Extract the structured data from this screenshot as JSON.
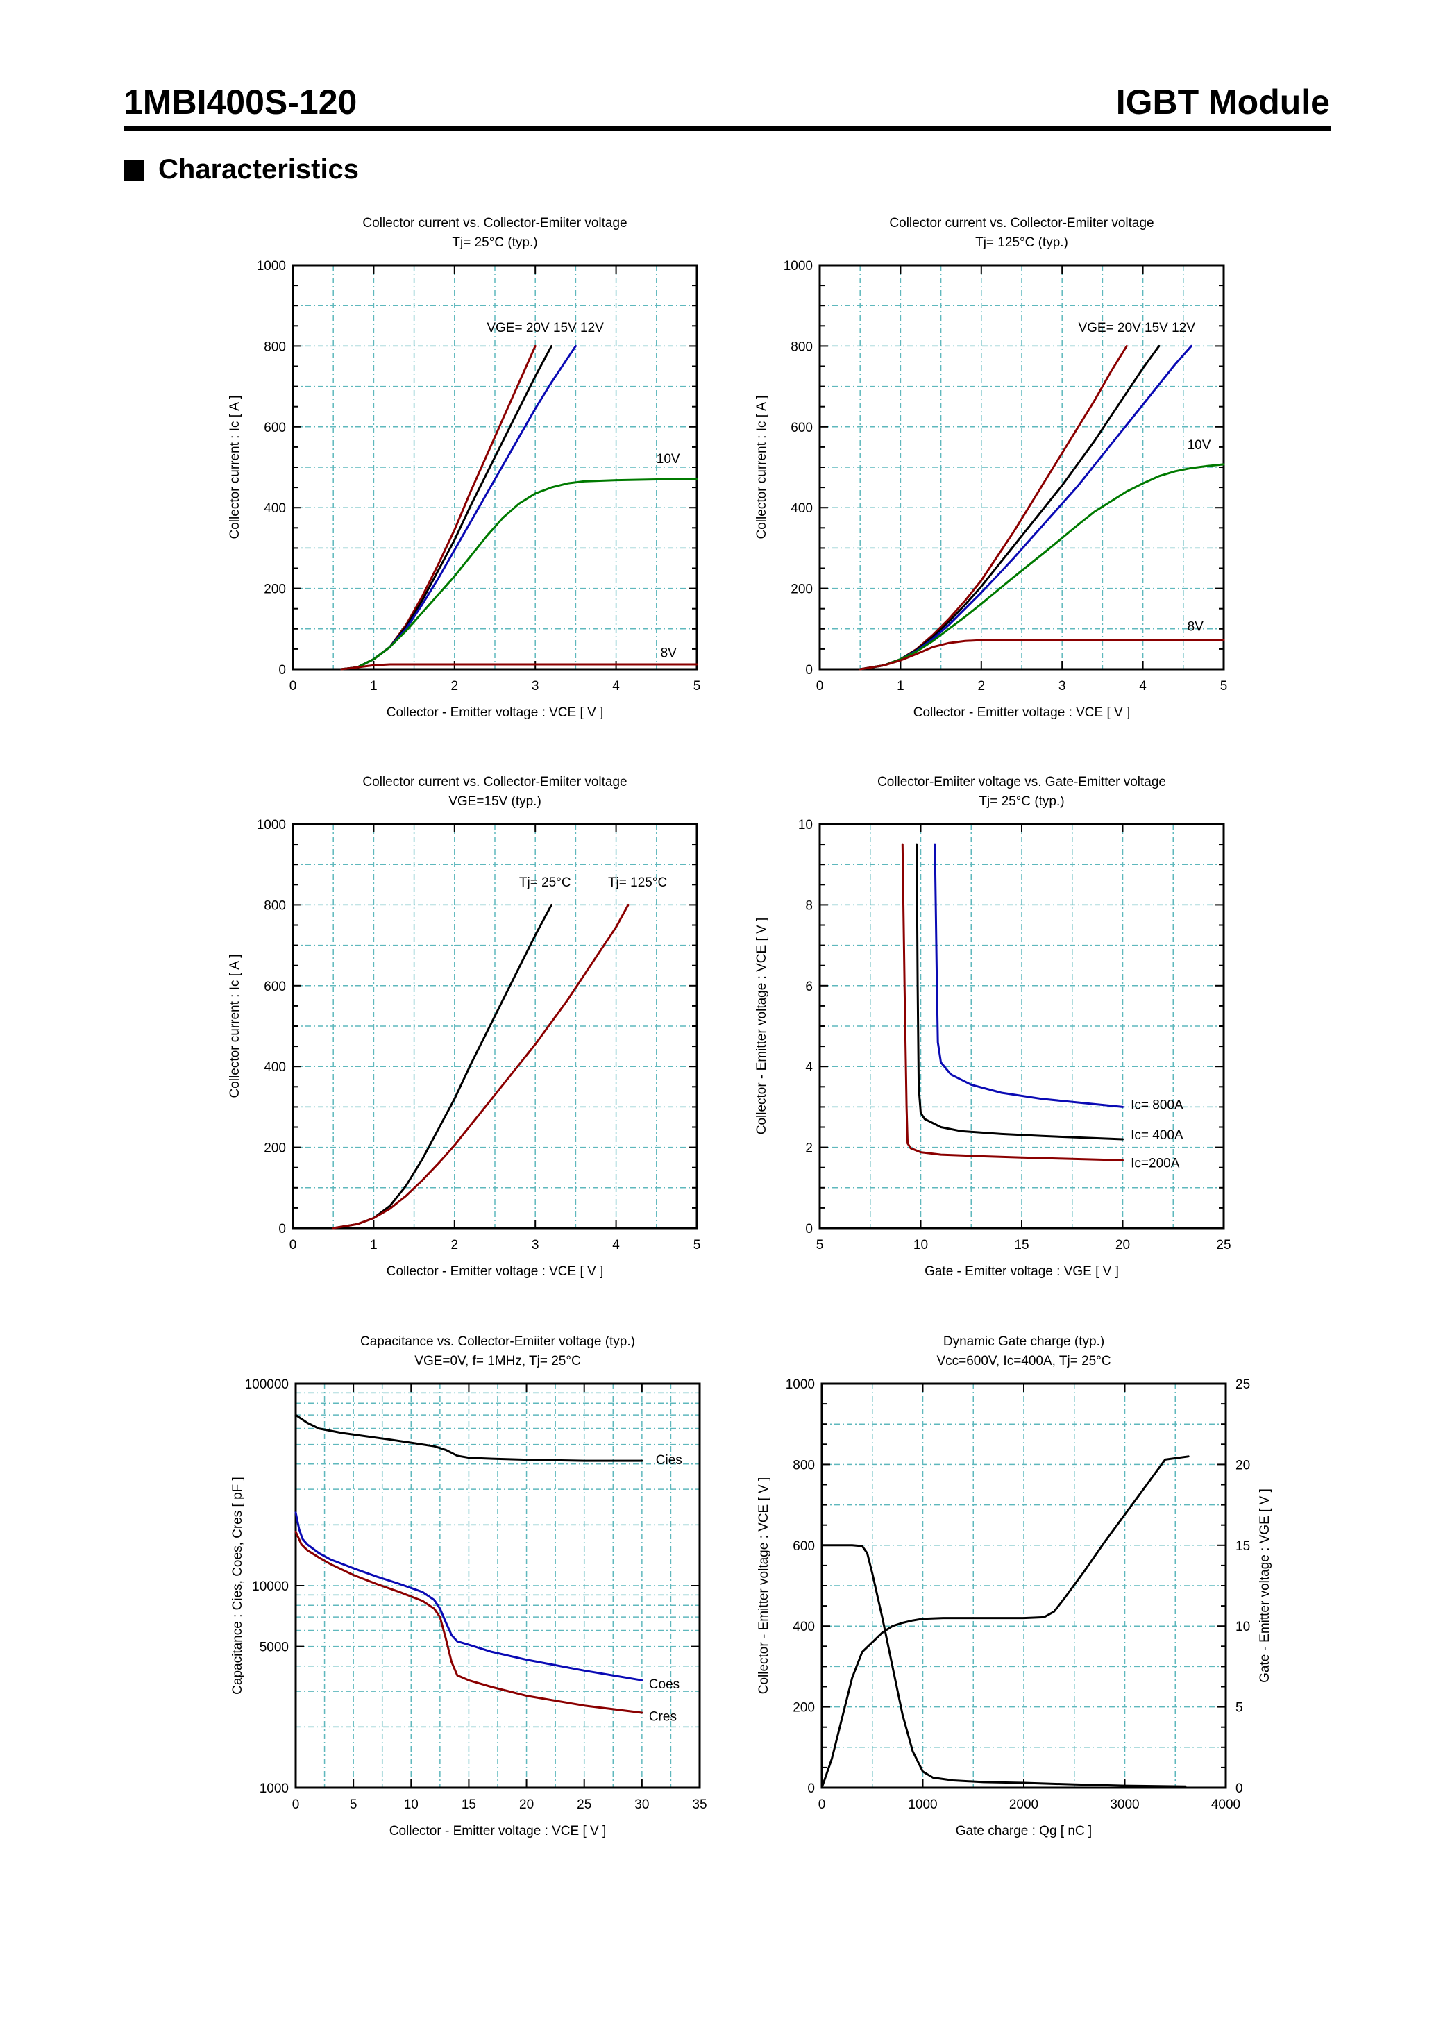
{
  "header": {
    "part_number": "1MBI400S-120",
    "product_type": "IGBT Module"
  },
  "section": {
    "title": "Characteristics"
  },
  "colors": {
    "grid": "#5fb8bd",
    "red": "#8b0000",
    "black": "#000000",
    "blue": "#0a0ab4",
    "green": "#007a00"
  },
  "chart_data": [
    {
      "id": "c1",
      "type": "line",
      "title": "Collector current  vs.  Collector-Emiiter voltage",
      "subtitle": "Tj= 25°C  (typ.)",
      "xlabel": "Collector - Emitter voltage  :  VCE  [ V ]",
      "ylabel": "Collector current  :  Ic  [ A ]",
      "xlim": [
        0,
        5
      ],
      "ylim": [
        0,
        1000
      ],
      "xticks": [
        0,
        1,
        2,
        3,
        4,
        5
      ],
      "yticks": [
        0,
        200,
        400,
        600,
        800,
        1000
      ],
      "grid": true,
      "annotations": [
        {
          "text": "VGE= 20V  15V 12V",
          "x": 2.4,
          "y": 835
        },
        {
          "text": "10V",
          "x": 4.5,
          "y": 510
        },
        {
          "text": "8V",
          "x": 4.55,
          "y": 30
        }
      ],
      "series": [
        {
          "color": "red",
          "x": [
            0.6,
            0.8,
            1.0,
            1.2,
            1.4,
            1.6,
            1.8,
            2.0,
            2.2,
            2.4,
            2.6,
            2.8,
            3.0
          ],
          "y": [
            0,
            5,
            25,
            55,
            110,
            180,
            260,
            345,
            440,
            530,
            620,
            710,
            800
          ]
        },
        {
          "color": "black",
          "x": [
            0.6,
            0.8,
            1.0,
            1.2,
            1.4,
            1.6,
            1.8,
            2.0,
            2.2,
            2.4,
            2.6,
            2.8,
            3.0,
            3.2
          ],
          "y": [
            0,
            5,
            25,
            55,
            105,
            170,
            245,
            320,
            405,
            485,
            565,
            645,
            725,
            800
          ]
        },
        {
          "color": "blue",
          "x": [
            0.6,
            0.8,
            1.0,
            1.2,
            1.4,
            1.6,
            1.8,
            2.0,
            2.2,
            2.4,
            2.6,
            2.8,
            3.0,
            3.2,
            3.5
          ],
          "y": [
            0,
            5,
            25,
            55,
            100,
            160,
            225,
            295,
            365,
            435,
            505,
            575,
            645,
            710,
            800
          ]
        },
        {
          "color": "green",
          "x": [
            0.6,
            0.8,
            1.0,
            1.2,
            1.4,
            1.6,
            1.8,
            2.0,
            2.2,
            2.4,
            2.6,
            2.8,
            3.0,
            3.2,
            3.4,
            3.6,
            4.0,
            4.5,
            5.0
          ],
          "y": [
            0,
            5,
            25,
            55,
            95,
            140,
            185,
            230,
            280,
            330,
            375,
            410,
            435,
            450,
            460,
            465,
            468,
            470,
            470
          ]
        },
        {
          "color": "red",
          "x": [
            0.6,
            0.8,
            1.0,
            1.2,
            1.5,
            2.0,
            3.0,
            4.0,
            5.0
          ],
          "y": [
            0,
            5,
            10,
            12,
            12,
            12,
            12,
            12,
            12
          ]
        }
      ]
    },
    {
      "id": "c2",
      "type": "line",
      "title": "Collector current  vs.  Collector-Emiiter voltage",
      "subtitle": "Tj= 125°C  (typ.)",
      "xlabel": "Collector - Emitter voltage  :  VCE  [ V ]",
      "ylabel": "Collector current  :  Ic  [ A ]",
      "xlim": [
        0,
        5
      ],
      "ylim": [
        0,
        1000
      ],
      "xticks": [
        0,
        1,
        2,
        3,
        4,
        5
      ],
      "yticks": [
        0,
        200,
        400,
        600,
        800,
        1000
      ],
      "grid": true,
      "annotations": [
        {
          "text": "VGE= 20V  15V  12V",
          "x": 3.2,
          "y": 835
        },
        {
          "text": "10V",
          "x": 4.55,
          "y": 545
        },
        {
          "text": "8V",
          "x": 4.55,
          "y": 95
        }
      ],
      "series": [
        {
          "color": "red",
          "x": [
            0.5,
            0.8,
            1.0,
            1.2,
            1.4,
            1.6,
            1.8,
            2.0,
            2.2,
            2.4,
            2.6,
            2.8,
            3.0,
            3.2,
            3.4,
            3.6,
            3.8,
            3.8
          ],
          "y": [
            0,
            10,
            25,
            50,
            85,
            125,
            170,
            220,
            280,
            340,
            405,
            470,
            535,
            600,
            665,
            735,
            800,
            800
          ]
        },
        {
          "color": "black",
          "x": [
            0.5,
            0.8,
            1.0,
            1.2,
            1.4,
            1.6,
            1.8,
            2.0,
            2.2,
            2.4,
            2.6,
            2.8,
            3.0,
            3.2,
            3.4,
            3.6,
            3.8,
            4.0,
            4.2
          ],
          "y": [
            0,
            10,
            25,
            48,
            80,
            118,
            160,
            205,
            255,
            305,
            355,
            405,
            455,
            510,
            565,
            625,
            685,
            745,
            800
          ]
        },
        {
          "color": "blue",
          "x": [
            0.5,
            0.8,
            1.0,
            1.2,
            1.4,
            1.6,
            1.8,
            2.0,
            2.2,
            2.4,
            2.6,
            2.8,
            3.0,
            3.2,
            3.4,
            3.6,
            3.8,
            4.0,
            4.2,
            4.4,
            4.6
          ],
          "y": [
            0,
            10,
            25,
            46,
            75,
            110,
            150,
            190,
            232,
            275,
            320,
            365,
            410,
            455,
            505,
            555,
            605,
            655,
            705,
            755,
            800
          ]
        },
        {
          "color": "green",
          "x": [
            0.5,
            0.8,
            1.0,
            1.2,
            1.4,
            1.6,
            1.8,
            2.0,
            2.2,
            2.4,
            2.6,
            2.8,
            3.0,
            3.2,
            3.4,
            3.6,
            3.8,
            4.0,
            4.2,
            4.4,
            4.6,
            4.8,
            5.0
          ],
          "y": [
            0,
            10,
            25,
            44,
            70,
            100,
            130,
            162,
            195,
            228,
            260,
            292,
            325,
            358,
            390,
            415,
            440,
            460,
            478,
            490,
            498,
            503,
            507
          ]
        },
        {
          "color": "red",
          "x": [
            0.5,
            0.8,
            1.0,
            1.2,
            1.4,
            1.6,
            1.8,
            2.0,
            2.5,
            3.0,
            4.0,
            5.0
          ],
          "y": [
            0,
            10,
            22,
            38,
            55,
            65,
            70,
            72,
            72,
            72,
            72,
            73
          ]
        }
      ]
    },
    {
      "id": "c3",
      "type": "line",
      "title": "Collector current  vs.  Collector-Emiiter voltage",
      "subtitle": "VGE=15V  (typ.)",
      "xlabel": "Collector - Emitter voltage  :  VCE  [ V ]",
      "ylabel": "Collector current  :  Ic  [ A ]",
      "xlim": [
        0,
        5
      ],
      "ylim": [
        0,
        1000
      ],
      "xticks": [
        0,
        1,
        2,
        3,
        4,
        5
      ],
      "yticks": [
        0,
        200,
        400,
        600,
        800,
        1000
      ],
      "grid": true,
      "annotations": [
        {
          "text": "Tj= 25°C",
          "x": 2.8,
          "y": 845
        },
        {
          "text": "Tj= 125°C",
          "x": 3.9,
          "y": 845
        }
      ],
      "series": [
        {
          "color": "black",
          "x": [
            0.5,
            0.8,
            1.0,
            1.2,
            1.4,
            1.6,
            1.8,
            2.0,
            2.2,
            2.4,
            2.6,
            2.8,
            3.0,
            3.2
          ],
          "y": [
            0,
            10,
            25,
            55,
            105,
            170,
            245,
            320,
            405,
            485,
            565,
            645,
            725,
            800
          ]
        },
        {
          "color": "red",
          "x": [
            0.5,
            0.8,
            1.0,
            1.2,
            1.4,
            1.6,
            1.8,
            2.0,
            2.2,
            2.4,
            2.6,
            2.8,
            3.0,
            3.2,
            3.4,
            3.6,
            3.8,
            4.0,
            4.15
          ],
          "y": [
            0,
            10,
            25,
            48,
            80,
            118,
            160,
            205,
            255,
            305,
            355,
            405,
            455,
            510,
            565,
            625,
            685,
            745,
            800
          ]
        }
      ]
    },
    {
      "id": "c4",
      "type": "line",
      "title": "Collector-Emiiter voltage  vs. Gate-Emitter voltage",
      "subtitle": "Tj= 25°C  (typ.)",
      "xlabel": "Gate - Emitter voltage  :  VGE  [ V ]",
      "ylabel": "Collector - Emitter voltage  :  VCE  [ V ]",
      "xlim": [
        5,
        25
      ],
      "ylim": [
        0,
        10
      ],
      "xticks": [
        5,
        10,
        15,
        20,
        25
      ],
      "yticks": [
        0,
        2,
        4,
        6,
        8,
        10
      ],
      "grid": true,
      "annotations": [
        {
          "text": "Ic= 800A",
          "x": 20.4,
          "y": 2.95
        },
        {
          "text": "Ic= 400A",
          "x": 20.4,
          "y": 2.2
        },
        {
          "text": "Ic=200A",
          "x": 20.4,
          "y": 1.5
        }
      ],
      "series": [
        {
          "color": "red",
          "x": [
            9.1,
            9.2,
            9.3,
            9.35,
            9.5,
            10.0,
            11.0,
            13.0,
            15.0,
            17.0,
            20.0
          ],
          "y": [
            9.5,
            6.0,
            3.0,
            2.1,
            1.98,
            1.88,
            1.82,
            1.78,
            1.75,
            1.72,
            1.68
          ]
        },
        {
          "color": "black",
          "x": [
            9.8,
            9.85,
            9.9,
            10.0,
            10.2,
            11.0,
            12.0,
            14.0,
            16.0,
            18.0,
            20.0
          ],
          "y": [
            9.5,
            6.0,
            3.5,
            2.85,
            2.7,
            2.5,
            2.4,
            2.33,
            2.28,
            2.24,
            2.2
          ]
        },
        {
          "color": "blue",
          "x": [
            10.7,
            10.8,
            10.85,
            11.0,
            11.5,
            12.5,
            14.0,
            16.0,
            18.0,
            20.0
          ],
          "y": [
            9.5,
            6.0,
            4.6,
            4.1,
            3.8,
            3.55,
            3.35,
            3.2,
            3.1,
            3.0
          ]
        }
      ]
    },
    {
      "id": "c5",
      "type": "line",
      "title": "Capacitance  vs.  Collector-Emiiter voltage  (typ.)",
      "subtitle": "VGE=0V,  f= 1MHz,  Tj= 25°C",
      "xlabel": "Collector - Emitter voltage  :  VCE  [ V ]",
      "ylabel": "Capacitance  :  Cies, Coes, Cres  [ pF ]",
      "xlim": [
        0,
        35
      ],
      "ylim": [
        1000,
        100000
      ],
      "yscale": "log",
      "xticks": [
        0,
        5,
        10,
        15,
        20,
        25,
        30,
        35
      ],
      "yticks": [
        1000,
        5000,
        10000,
        100000
      ],
      "grid": true,
      "annotations": [
        {
          "text": "Cies",
          "x": 31.2,
          "y": 40000
        },
        {
          "text": "Coes",
          "x": 30.6,
          "y": 3100
        },
        {
          "text": "Cres",
          "x": 30.6,
          "y": 2150
        }
      ],
      "series": [
        {
          "color": "black",
          "x": [
            0,
            1,
            2,
            4,
            6,
            8,
            10,
            12,
            13,
            14,
            15,
            17,
            20,
            25,
            30
          ],
          "y": [
            70000,
            64000,
            60000,
            57000,
            55000,
            53000,
            51000,
            49000,
            47000,
            44000,
            43000,
            42500,
            42000,
            41500,
            41500
          ]
        },
        {
          "color": "blue",
          "x": [
            0,
            0.3,
            0.6,
            1,
            2,
            3,
            5,
            7,
            9,
            11,
            12,
            12.5,
            13,
            13.5,
            14,
            15,
            17,
            20,
            25,
            30
          ],
          "y": [
            23000,
            19000,
            17000,
            16000,
            14500,
            13500,
            12200,
            11100,
            10200,
            9300,
            8500,
            7700,
            6600,
            5700,
            5300,
            5100,
            4700,
            4300,
            3800,
            3400
          ]
        },
        {
          "color": "red",
          "x": [
            0,
            0.5,
            1,
            2,
            3,
            5,
            7,
            9,
            11,
            12,
            12.5,
            13,
            13.5,
            14,
            15,
            17,
            20,
            25,
            30
          ],
          "y": [
            18500,
            16000,
            15000,
            13800,
            12800,
            11300,
            10200,
            9300,
            8400,
            7700,
            7000,
            5500,
            4200,
            3600,
            3400,
            3150,
            2850,
            2550,
            2350
          ]
        }
      ]
    },
    {
      "id": "c6",
      "type": "line",
      "title": "Dynamic Gate charge  (typ.)",
      "subtitle": "Vcc=600V, Ic=400A, Tj= 25°C",
      "xlabel": "Gate charge  :  Qg  [ nC ]",
      "ylabel": "Collector - Emitter voltage  :  VCE  [ V ]",
      "y2label": "Gate - Emitter voltage  :  VGE  [ V ]",
      "xlim": [
        0,
        4000
      ],
      "ylim": [
        0,
        1000
      ],
      "y2lim": [
        0,
        25
      ],
      "xticks": [
        0,
        1000,
        2000,
        3000,
        4000
      ],
      "yticks": [
        0,
        200,
        400,
        600,
        800,
        1000
      ],
      "y2ticks": [
        0,
        5,
        10,
        15,
        20,
        25
      ],
      "grid": true,
      "series": [
        {
          "color": "black",
          "axis": "left",
          "x": [
            0,
            300,
            400,
            450,
            500,
            600,
            700,
            800,
            900,
            1000,
            1100,
            1300,
            1600,
            2000,
            2500,
            3000,
            3600
          ],
          "y": [
            600,
            600,
            598,
            580,
            530,
            420,
            300,
            180,
            90,
            40,
            25,
            18,
            14,
            12,
            8,
            5,
            3
          ]
        },
        {
          "color": "black",
          "axis": "right",
          "x": [
            0,
            100,
            200,
            300,
            400,
            500,
            600,
            700,
            800,
            900,
            1000,
            1200,
            1500,
            2000,
            2200,
            2300,
            2400,
            2600,
            2800,
            3000,
            3200,
            3400,
            3630
          ],
          "y": [
            0,
            1.8,
            4.3,
            6.8,
            8.4,
            9.0,
            9.6,
            10.0,
            10.2,
            10.35,
            10.45,
            10.5,
            10.5,
            10.5,
            10.55,
            10.9,
            11.7,
            13.4,
            15.2,
            16.9,
            18.6,
            20.3,
            20.5
          ]
        }
      ]
    }
  ]
}
